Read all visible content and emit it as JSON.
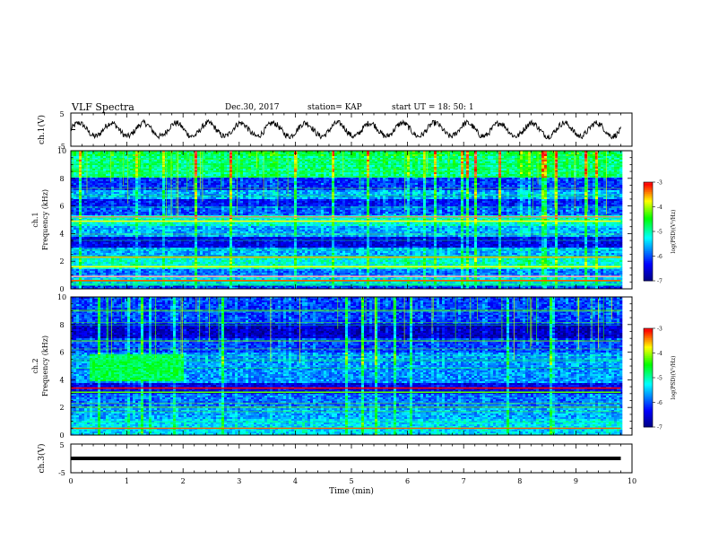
{
  "header": {
    "title": "VLF Spectra",
    "date": "Dec.30, 2017",
    "station": "station= KAP",
    "start": "start UT = 18: 50: 1"
  },
  "colors": {
    "colormap": [
      "#000080",
      "#0000ff",
      "#00ffff",
      "#00ff00",
      "#ffff00",
      "#ff0000",
      "#ffffff"
    ],
    "trace": "#000000"
  },
  "chart_data": [
    {
      "type": "line",
      "panel": "ch1",
      "ylabel": "ch.1(V)",
      "yticks": [
        "5",
        "-5"
      ],
      "ylim": [
        -5,
        5
      ],
      "xlim": [
        0,
        10
      ],
      "description_values": {
        "mean": 0,
        "amplitude": 2.0,
        "cycles": 17
      }
    },
    {
      "type": "heatmap",
      "panel": "ch1-spectrogram",
      "ylabel_lines": [
        "ch.1",
        "Frequency (kHz)"
      ],
      "yticks": [
        "0",
        "2",
        "4",
        "6",
        "8",
        "10"
      ],
      "ylim": [
        0,
        10
      ],
      "xlim": [
        0,
        9.8
      ],
      "bands": [
        {
          "f0": 9.6,
          "f1": 10.0,
          "level": 0.5
        },
        {
          "f0": 8.0,
          "f1": 9.6,
          "level": 0.45
        },
        {
          "f0": 7.2,
          "f1": 8.0,
          "level": 0.18
        },
        {
          "f0": 6.5,
          "f1": 7.2,
          "level": 0.3
        },
        {
          "f0": 6.0,
          "f1": 6.5,
          "level": 0.15
        },
        {
          "f0": 5.3,
          "f1": 6.0,
          "level": 0.22
        },
        {
          "f0": 4.6,
          "f1": 5.3,
          "level": 0.4
        },
        {
          "f0": 3.8,
          "f1": 4.6,
          "level": 0.3
        },
        {
          "f0": 3.0,
          "f1": 3.8,
          "level": 0.12
        },
        {
          "f0": 2.4,
          "f1": 3.0,
          "level": 0.3
        },
        {
          "f0": 1.4,
          "f1": 2.4,
          "level": 0.4
        },
        {
          "f0": 0.9,
          "f1": 1.4,
          "level": 0.25
        },
        {
          "f0": 0.3,
          "f1": 0.9,
          "level": 0.35
        },
        {
          "f0": 0.0,
          "f1": 0.3,
          "level": 0.2
        }
      ],
      "lines": [
        {
          "f": 5.2,
          "level": 0.92
        },
        {
          "f": 4.9,
          "level": 0.7
        },
        {
          "f": 2.3,
          "level": 0.75
        },
        {
          "f": 1.6,
          "level": 0.7
        },
        {
          "f": 0.9,
          "level": 0.95
        },
        {
          "f": 0.6,
          "level": 0.8
        }
      ],
      "colorbar": {
        "label": "log(PSD)(V²/Hz)",
        "ticks": [
          "-3",
          "-4",
          "-5",
          "-6",
          "-7"
        ],
        "range": [
          -7,
          -3
        ]
      }
    },
    {
      "type": "heatmap",
      "panel": "ch2-spectrogram",
      "ylabel_lines": [
        "ch.2",
        "Frequency (kHz)"
      ],
      "yticks": [
        "0",
        "2",
        "4",
        "6",
        "8",
        "10"
      ],
      "ylim": [
        0,
        10
      ],
      "xlim": [
        0,
        9.8
      ],
      "bands": [
        {
          "f0": 8.0,
          "f1": 10.0,
          "level": 0.2
        },
        {
          "f0": 7.0,
          "f1": 8.0,
          "level": 0.08
        },
        {
          "f0": 6.0,
          "f1": 7.0,
          "level": 0.2
        },
        {
          "f0": 3.8,
          "f1": 6.0,
          "level": 0.28
        },
        {
          "f0": 3.0,
          "f1": 3.8,
          "level": 0.12
        },
        {
          "f0": 2.0,
          "f1": 3.0,
          "level": 0.25
        },
        {
          "f0": 1.2,
          "f1": 2.0,
          "level": 0.3
        },
        {
          "f0": 0.0,
          "f1": 1.2,
          "level": 0.35
        }
      ],
      "lines": [
        {
          "f": 3.4,
          "level": 0.85
        },
        {
          "f": 3.1,
          "level": 0.6
        },
        {
          "f": 0.5,
          "level": 0.8
        }
      ],
      "hotspot": {
        "t0": 0.3,
        "t1": 2.0,
        "f0": 3.9,
        "f1": 5.8,
        "level": 0.5
      },
      "colorbar": {
        "label": "log(PSD)(V²/Hz)",
        "ticks": [
          "-3",
          "-4",
          "-5",
          "-6",
          "-7"
        ],
        "range": [
          -7,
          -3
        ]
      }
    },
    {
      "type": "line",
      "panel": "ch3",
      "ylabel": "ch.3(V)",
      "yticks": [
        "5",
        "-5"
      ],
      "ylim": [
        -5,
        5
      ],
      "xlim": [
        0,
        10
      ],
      "constant_value": 0
    }
  ],
  "xaxis": {
    "label": "Time (min)",
    "ticks": [
      "0",
      "1",
      "2",
      "3",
      "4",
      "5",
      "6",
      "7",
      "8",
      "9",
      "10"
    ],
    "range": [
      0,
      10
    ]
  }
}
